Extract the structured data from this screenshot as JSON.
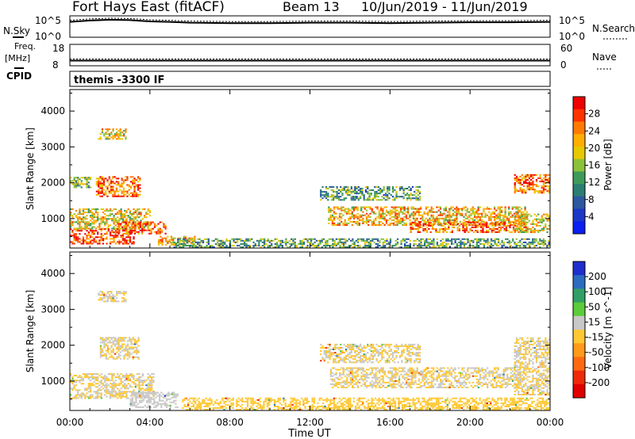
{
  "header": {
    "station": "Fort Hays East (fitACF)",
    "beam": "Beam 13",
    "date_range": "10/Jun/2019 - 11/Jun/2019"
  },
  "top_panels": {
    "nsky_label": "N.Sky",
    "nsky_ticks": [
      "10^5",
      "10^0"
    ],
    "nsearch_label": "N.Search",
    "nsearch_ticks": [
      "10^5",
      "10^0"
    ],
    "freq_label": "Freq.",
    "freq_unit": "[MHz]",
    "freq_ticks": [
      "18",
      "8"
    ],
    "nave_label": "Nave",
    "nave_ticks": [
      "60",
      "0"
    ],
    "cpid_label": "CPID",
    "cpid_text": "themis -3300 IF"
  },
  "axes": {
    "ylabel": "Slant Range [km]",
    "yticks": [
      "4000",
      "3000",
      "2000",
      "1000"
    ],
    "xlabel": "Time UT",
    "xticks": [
      "00:00",
      "04:00",
      "08:00",
      "12:00",
      "16:00",
      "20:00",
      "00:00"
    ]
  },
  "power_colorbar": {
    "label": "Power [dB]",
    "ticks": [
      "28",
      "24",
      "20",
      "16",
      "12",
      "8",
      "4"
    ],
    "colors": [
      "#ee0000",
      "#ff3300",
      "#ff7a00",
      "#ffae00",
      "#e6c800",
      "#8cc23a",
      "#3f9a5a",
      "#2c7d72",
      "#2d58a0",
      "#1c36c8",
      "#0a1ff0"
    ]
  },
  "velocity_colorbar": {
    "label": "Velocity [m s^-1]",
    "ticks": [
      "200",
      "100",
      "50",
      "15",
      "-15",
      "-50",
      "-100",
      "-200"
    ],
    "colors": [
      "#1f2ecc",
      "#2b6cc0",
      "#32a066",
      "#5ccc3a",
      "#c8c8c8",
      "#ffc832",
      "#ff9a1a",
      "#ff6a10",
      "#ee2a0a",
      "#e00000"
    ]
  },
  "chart_data": {
    "type": "heatmap",
    "title": "Fort Hays East (fitACF)  Beam 13  10/Jun/2019 - 11/Jun/2019",
    "xlabel": "Time UT",
    "ylabel": "Slant Range [km]",
    "xlim": [
      0,
      24
    ],
    "ylim": [
      180,
      4600
    ],
    "x_units": "hours UT",
    "panels": [
      {
        "name": "Power",
        "units": "dB",
        "clim": [
          0,
          30
        ],
        "regions": [
          {
            "t0": 0.0,
            "t1": 3.2,
            "r0": 280,
            "r1": 720,
            "value": 26
          },
          {
            "t0": 0.0,
            "t1": 4.0,
            "r0": 700,
            "r1": 1250,
            "value": 18
          },
          {
            "t0": 1.3,
            "t1": 3.5,
            "r0": 1600,
            "r1": 2150,
            "value": 24
          },
          {
            "t0": 0.0,
            "t1": 1.0,
            "r0": 1850,
            "r1": 2150,
            "value": 14
          },
          {
            "t0": 1.4,
            "t1": 2.8,
            "r0": 3200,
            "r1": 3500,
            "value": 18
          },
          {
            "t0": 2.4,
            "t1": 4.8,
            "r0": 560,
            "r1": 920,
            "value": 24
          },
          {
            "t0": 4.4,
            "t1": 6.2,
            "r0": 250,
            "r1": 500,
            "value": 20
          },
          {
            "t0": 5.0,
            "t1": 24.0,
            "r0": 180,
            "r1": 420,
            "value": 12
          },
          {
            "t0": 12.9,
            "t1": 22.8,
            "r0": 800,
            "r1": 1300,
            "value": 20
          },
          {
            "t0": 12.5,
            "t1": 17.5,
            "r0": 1500,
            "r1": 1900,
            "value": 12
          },
          {
            "t0": 17.0,
            "t1": 22.8,
            "r0": 600,
            "r1": 900,
            "value": 24
          },
          {
            "t0": 22.2,
            "t1": 24.0,
            "r0": 1700,
            "r1": 2200,
            "value": 24
          },
          {
            "t0": 22.2,
            "t1": 24.0,
            "r0": 600,
            "r1": 1100,
            "value": 18
          }
        ]
      },
      {
        "name": "Velocity",
        "units": "m/s",
        "clim": [
          -250,
          250
        ],
        "regions": [
          {
            "t0": 0.0,
            "t1": 4.2,
            "r0": 500,
            "r1": 1200,
            "value": 0
          },
          {
            "t0": 1.5,
            "t1": 3.4,
            "r0": 1600,
            "r1": 2200,
            "value": 0
          },
          {
            "t0": 1.4,
            "t1": 2.8,
            "r0": 3200,
            "r1": 3500,
            "value": 0
          },
          {
            "t0": 3.0,
            "t1": 5.4,
            "r0": 250,
            "r1": 700,
            "value": 25
          },
          {
            "t0": 5.6,
            "t1": 24.0,
            "r0": 180,
            "r1": 500,
            "value": -30
          },
          {
            "t0": 13.0,
            "t1": 22.5,
            "r0": 800,
            "r1": 1350,
            "value": 0
          },
          {
            "t0": 12.5,
            "t1": 17.5,
            "r0": 1500,
            "r1": 2000,
            "value": 0
          },
          {
            "t0": 22.2,
            "t1": 24.0,
            "r0": 600,
            "r1": 2200,
            "value": 0
          }
        ]
      }
    ],
    "nsky_trace": {
      "x": [
        0,
        1,
        2,
        3,
        4,
        5,
        6,
        8,
        10,
        12,
        14,
        16,
        18,
        20,
        22,
        24
      ],
      "y": [
        3.6,
        3.9,
        4.1,
        4.0,
        3.7,
        3.6,
        3.4,
        3.3,
        3.3,
        3.4,
        3.4,
        3.3,
        3.4,
        3.5,
        3.5,
        3.6
      ]
    },
    "freq_trace": {
      "x": [
        0,
        24
      ],
      "y": [
        10.4,
        10.4
      ]
    }
  }
}
